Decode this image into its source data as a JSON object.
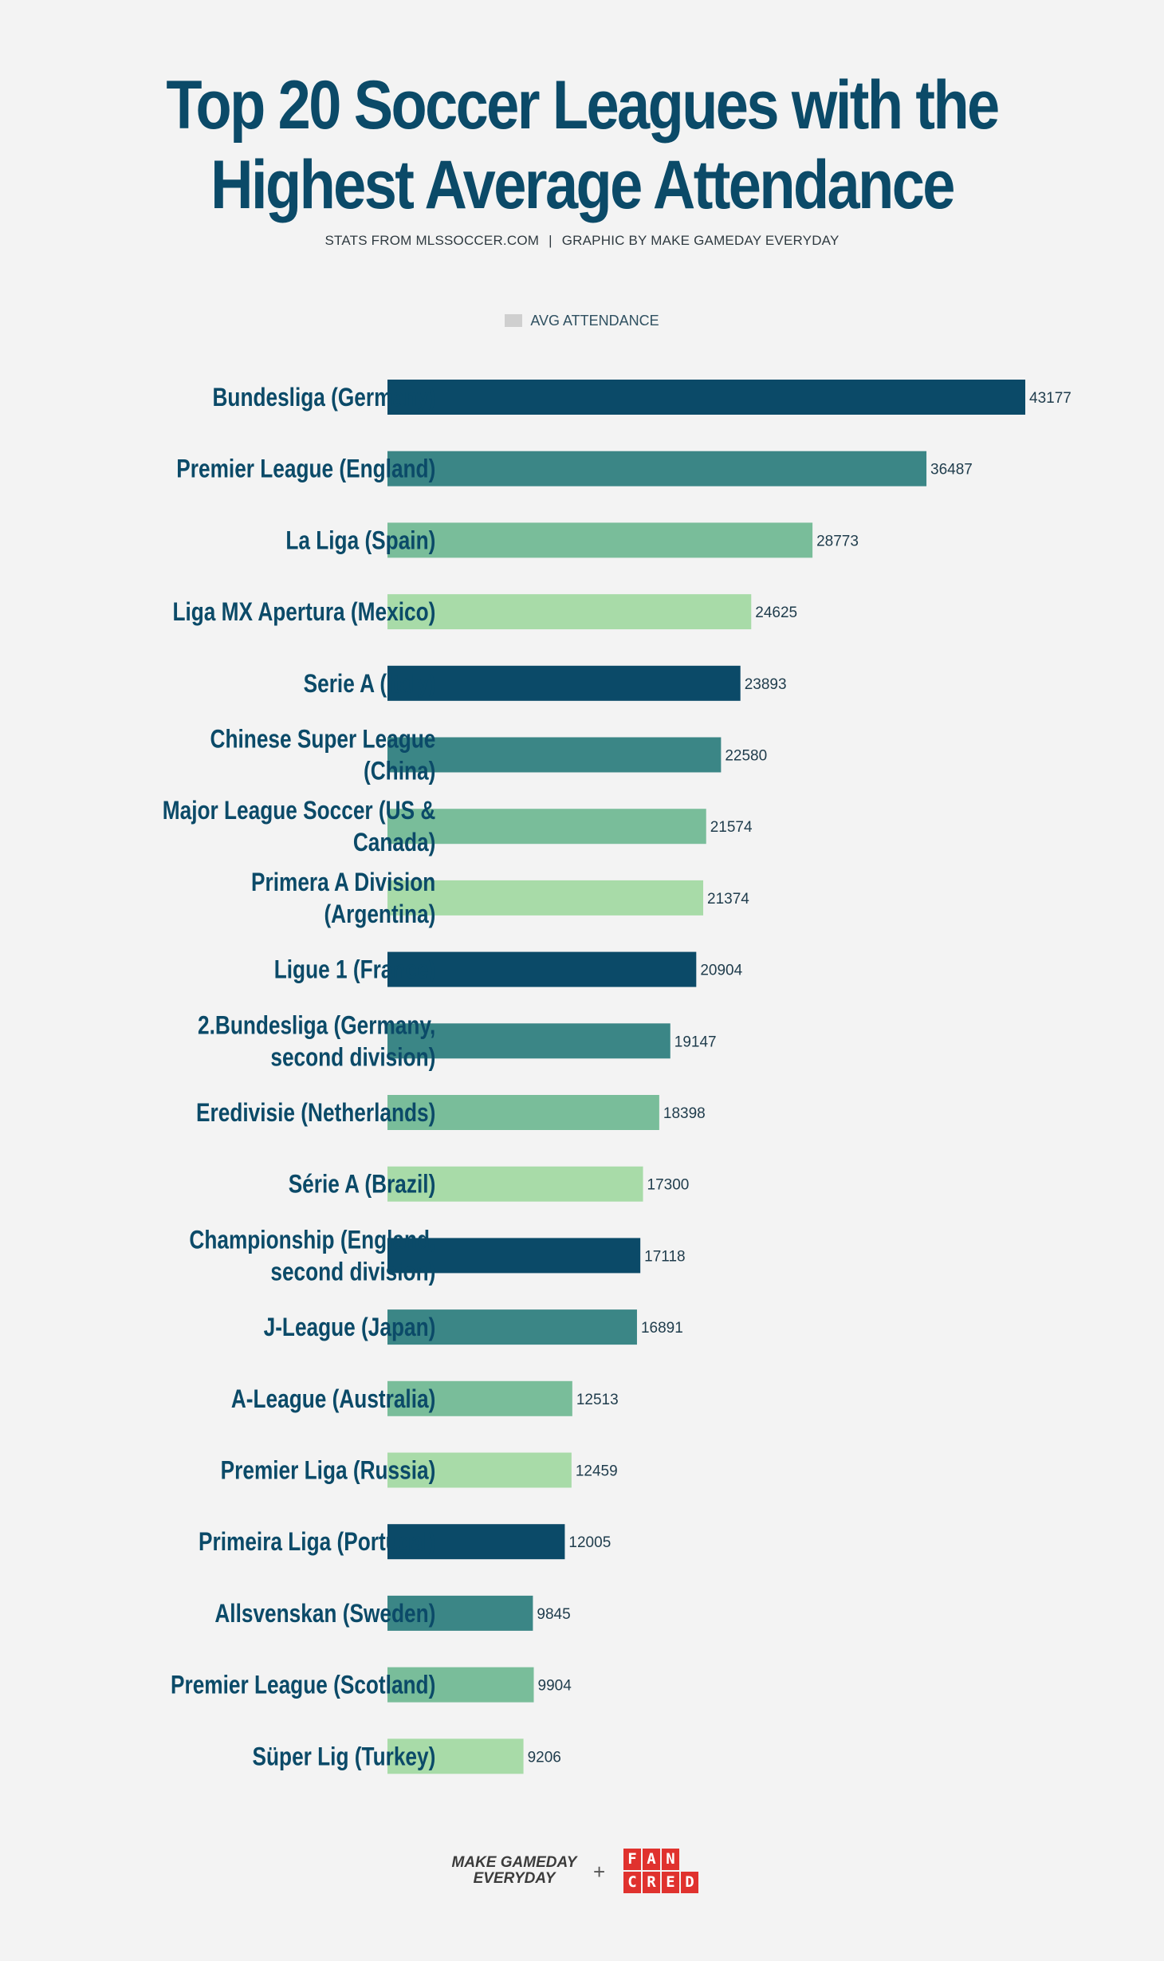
{
  "header": {
    "title_line1": "Top 20 Soccer Leagues with the",
    "title_line2": "Highest Average Attendance",
    "source": "STATS FROM MLSSOCCER.COM",
    "separator": "|",
    "credit": "GRAPHIC BY MAKE GAMEDAY EVERYDAY"
  },
  "legend": {
    "label": "AVG ATTENDANCE"
  },
  "footer": {
    "brand_line1": "MAKE GAMEDAY",
    "brand_line2": "EVERYDAY",
    "plus": "+",
    "partner_letters": [
      "F",
      "A",
      "N",
      "C",
      "R",
      "E",
      "D"
    ]
  },
  "palette": [
    "#0b4a68",
    "#3b8686",
    "#79bd9a",
    "#a8dba8"
  ],
  "chart_data": {
    "type": "bar",
    "orientation": "horizontal",
    "title": "Top 20 Soccer Leagues with the Highest Average Attendance",
    "xlabel": "",
    "ylabel": "",
    "xlim": [
      0,
      43177
    ],
    "grid": false,
    "legend": "top-center",
    "series": [
      {
        "name": "AVG ATTENDANCE",
        "categories": [
          "Bundesliga (Germany)",
          "Premier League (England)",
          "La Liga (Spain)",
          "Liga MX Apertura (Mexico)",
          "Serie A (Italy)",
          "Chinese Super League (China)",
          "Major League Soccer (US & Canada)",
          "Primera A Division (Argentina)",
          "Ligue 1 (France)",
          "2.Bundesliga (Germany, second division)",
          "Eredivisie (Netherlands)",
          "Série A (Brazil)",
          "Championship (England, second division)",
          "J-League (Japan)",
          "A-League (Australia)",
          "Premier Liga (Russia)",
          "Primeira Liga (Portugal)",
          "Allsvenskan (Sweden)",
          "Premier League (Scotland)",
          "Süper Lig (Turkey)"
        ],
        "label_lines": [
          [
            "Bundesliga (Germany)"
          ],
          [
            "Premier League (England)"
          ],
          [
            "La Liga (Spain)"
          ],
          [
            "Liga MX Apertura (Mexico)"
          ],
          [
            "Serie A (Italy)"
          ],
          [
            "Chinese Super League",
            "(China)"
          ],
          [
            "Major League Soccer (US &",
            "Canada)"
          ],
          [
            "Primera A Division",
            "(Argentina)"
          ],
          [
            "Ligue 1 (France)"
          ],
          [
            "2.Bundesliga (Germany,",
            "second division)"
          ],
          [
            "Eredivisie (Netherlands)"
          ],
          [
            "Série A (Brazil)"
          ],
          [
            "Championship (England,",
            "second division)"
          ],
          [
            "J-League (Japan)"
          ],
          [
            "A-League (Australia)"
          ],
          [
            "Premier Liga (Russia)"
          ],
          [
            "Primeira Liga (Portugal)"
          ],
          [
            "Allsvenskan (Sweden)"
          ],
          [
            "Premier League (Scotland)"
          ],
          [
            "Süper Lig (Turkey)"
          ]
        ],
        "values": [
          43177,
          36487,
          28773,
          24625,
          23893,
          22580,
          21574,
          21374,
          20904,
          19147,
          18398,
          17300,
          17118,
          16891,
          12513,
          12459,
          12005,
          9845,
          9904,
          9206
        ]
      }
    ]
  }
}
